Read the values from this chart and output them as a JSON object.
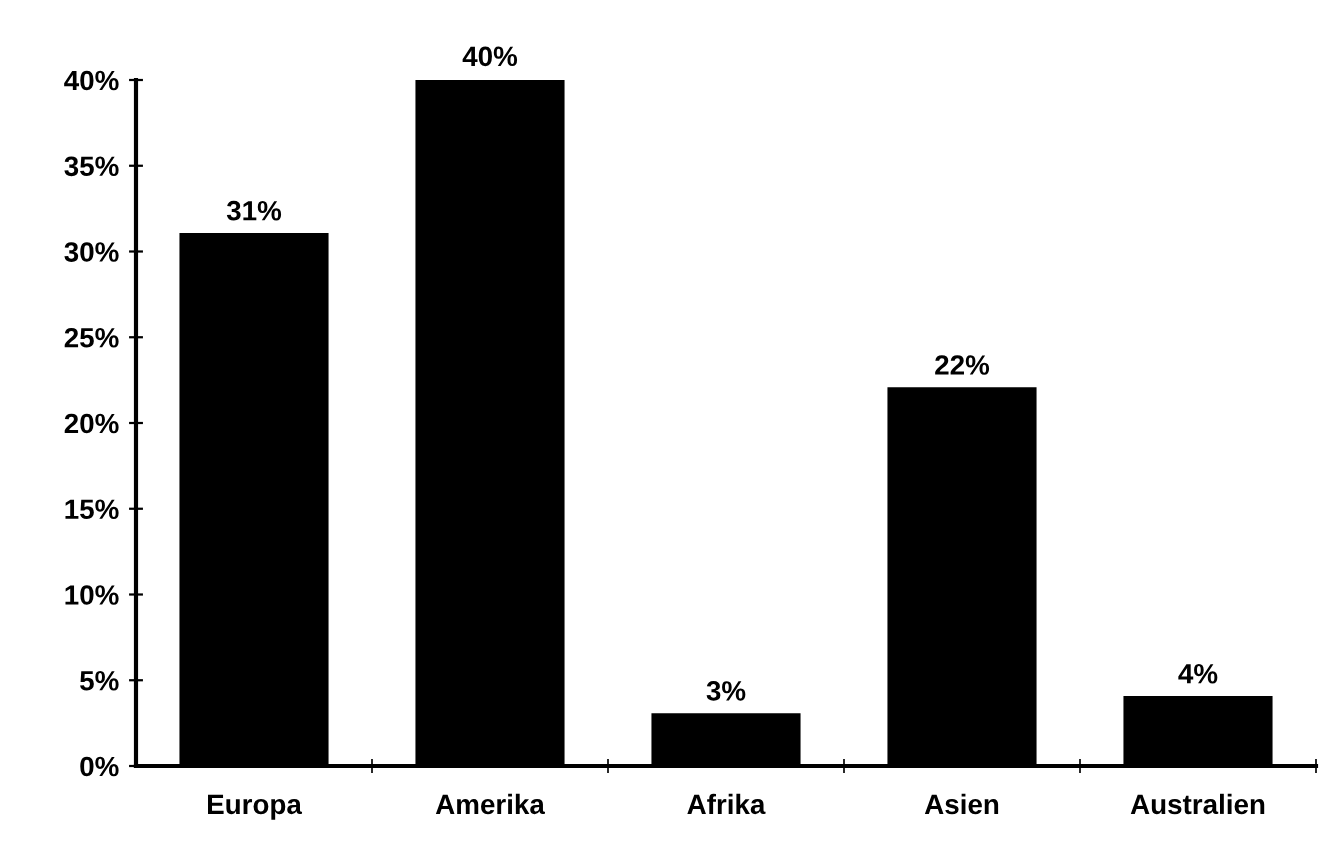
{
  "chart_data": {
    "type": "bar",
    "categories": [
      "Europa",
      "Amerika",
      "Afrika",
      "Asien",
      "Australien"
    ],
    "values": [
      31,
      40,
      3,
      22,
      4
    ],
    "color": "#000000",
    "value_labels": [
      "31%",
      "40%",
      "3%",
      "22%",
      "4%"
    ],
    "ylim": [
      0,
      40
    ],
    "yticks": [
      {
        "value": 0,
        "label": "0%"
      },
      {
        "value": 5,
        "label": "5%"
      },
      {
        "value": 10,
        "label": "10%"
      },
      {
        "value": 15,
        "label": "15%"
      },
      {
        "value": 20,
        "label": "20%"
      },
      {
        "value": 25,
        "label": "25%"
      },
      {
        "value": 30,
        "label": "30%"
      },
      {
        "value": 35,
        "label": "35%"
      },
      {
        "value": 40,
        "label": "40%"
      }
    ],
    "grid": false,
    "legend": false
  }
}
